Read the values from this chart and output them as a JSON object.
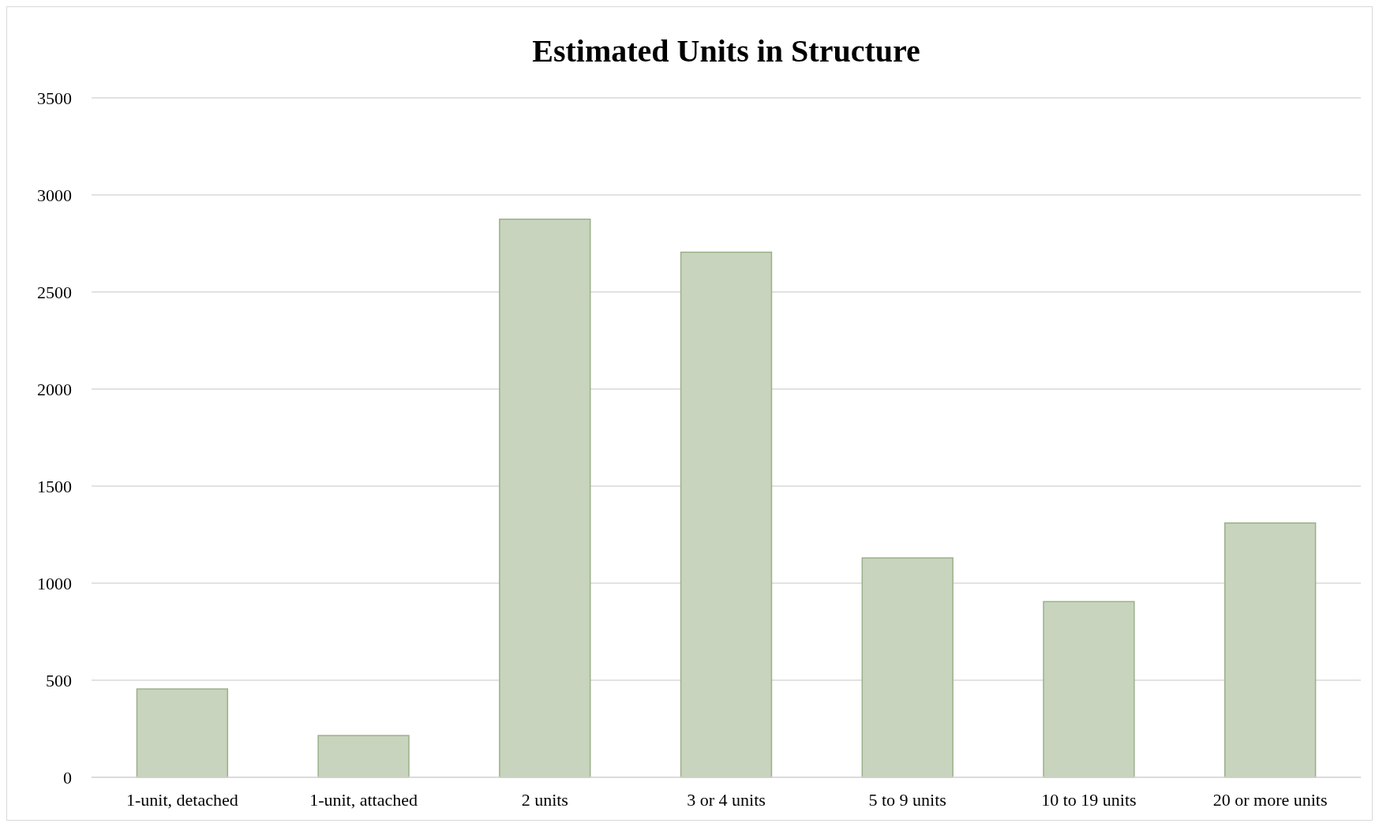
{
  "chart_data": {
    "type": "bar",
    "title": "Estimated Units in Structure",
    "categories": [
      "1-unit, detached",
      "1-unit, attached",
      "2 units",
      "3 or 4 units",
      "5 to 9 units",
      "10 to 19 units",
      "20 or more units"
    ],
    "values": [
      455,
      215,
      2875,
      2705,
      1130,
      905,
      1310
    ],
    "color": "#c8d4bd",
    "ylim": [
      0,
      3500
    ],
    "yticks": [
      0,
      500,
      1000,
      1500,
      2000,
      2500,
      3000,
      3500
    ],
    "grid": "y"
  }
}
